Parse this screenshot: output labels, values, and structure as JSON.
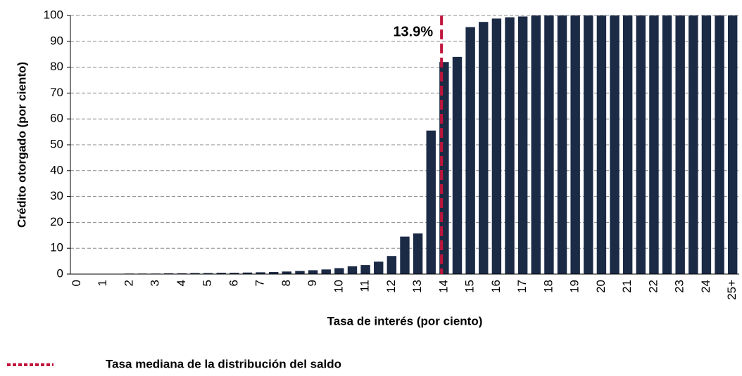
{
  "chart_data": {
    "type": "bar",
    "x_label": "Tasa de interés (por ciento)",
    "y_label": "Crédito otorgado (por ciento)",
    "categories": [
      "0",
      null,
      "1",
      null,
      "2",
      null,
      "3",
      null,
      "4",
      null,
      "5",
      null,
      "6",
      null,
      "7",
      null,
      "8",
      null,
      "9",
      null,
      "10",
      null,
      "11",
      null,
      "12",
      null,
      "13",
      null,
      "14",
      null,
      "15",
      null,
      "16",
      null,
      "17",
      null,
      "18",
      null,
      "19",
      null,
      "20",
      null,
      "21",
      null,
      "22",
      null,
      "23",
      null,
      "24",
      null,
      "25+"
    ],
    "values": [
      0.1,
      0.1,
      0.1,
      0.1,
      0.2,
      0.2,
      0.2,
      0.3,
      0.3,
      0.4,
      0.4,
      0.5,
      0.5,
      0.6,
      0.7,
      0.8,
      1,
      1.2,
      1.5,
      1.8,
      2.3,
      3,
      3.5,
      4.8,
      7,
      14.5,
      15.7,
      55.5,
      82,
      84,
      95.5,
      97.5,
      98.8,
      99.3,
      99.6,
      100,
      100,
      100,
      100,
      100,
      100,
      100,
      100,
      100,
      100,
      100,
      100,
      100,
      100,
      100,
      100
    ],
    "color": "#1b2a45",
    "ylim": [
      0,
      100
    ],
    "yticks": [
      0,
      10,
      20,
      30,
      40,
      50,
      60,
      70,
      80,
      90,
      100
    ],
    "grid": true,
    "median_line": {
      "value": 13.9,
      "label": "13.9%",
      "legend": "Tasa mediana de la distribución del saldo",
      "color": "#c0143c"
    }
  }
}
